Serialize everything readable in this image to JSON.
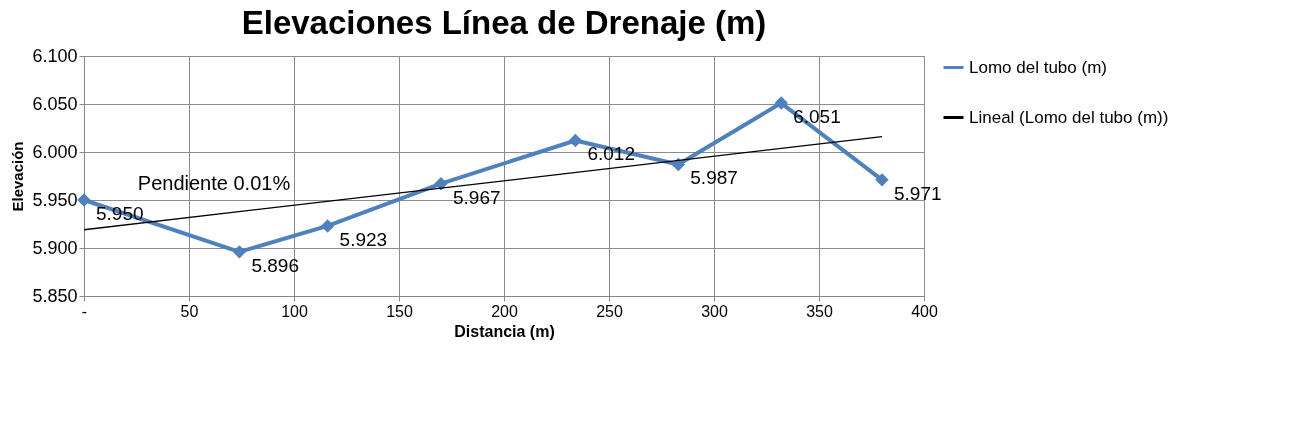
{
  "chart_data": {
    "type": "line",
    "title": "Elevaciones Línea de Drenaje (m)",
    "xlabel": "Distancia (m)",
    "ylabel": "Elevación",
    "x": [
      0,
      74,
      116,
      170,
      234,
      283,
      332,
      380
    ],
    "series": [
      {
        "name": "Lomo del tubo (m)",
        "color": "#4f81bd",
        "marker": "diamond",
        "values": [
          5.95,
          5.896,
          5.923,
          5.967,
          6.012,
          5.987,
          6.051,
          5.971
        ],
        "value_labels": [
          "5.950",
          "5.896",
          "5.923",
          "5.967",
          "6.012",
          "5.987",
          "6.051",
          "5.971"
        ]
      },
      {
        "name": "Lineal (Lomo del tubo (m))",
        "color": "#000000",
        "marker": "none",
        "x": [
          0,
          380
        ],
        "values": [
          5.919,
          6.016
        ]
      }
    ],
    "xlim": [
      0,
      400
    ],
    "xticks": [
      {
        "value": 0,
        "label": "-"
      },
      50,
      100,
      150,
      200,
      250,
      300,
      350,
      400
    ],
    "ylim": [
      5.85,
      6.1
    ],
    "yticks": [
      {
        "value": 5.85,
        "label": "5.850"
      },
      {
        "value": 5.9,
        "label": "5.900"
      },
      {
        "value": 5.95,
        "label": "5.950"
      },
      {
        "value": 6.0,
        "label": "6.000"
      },
      {
        "value": 6.05,
        "label": "6.050"
      },
      {
        "value": 6.1,
        "label": "6.100"
      }
    ],
    "annotations": [
      "Pendiente   0.01%"
    ],
    "grid": true,
    "legend": "right"
  }
}
